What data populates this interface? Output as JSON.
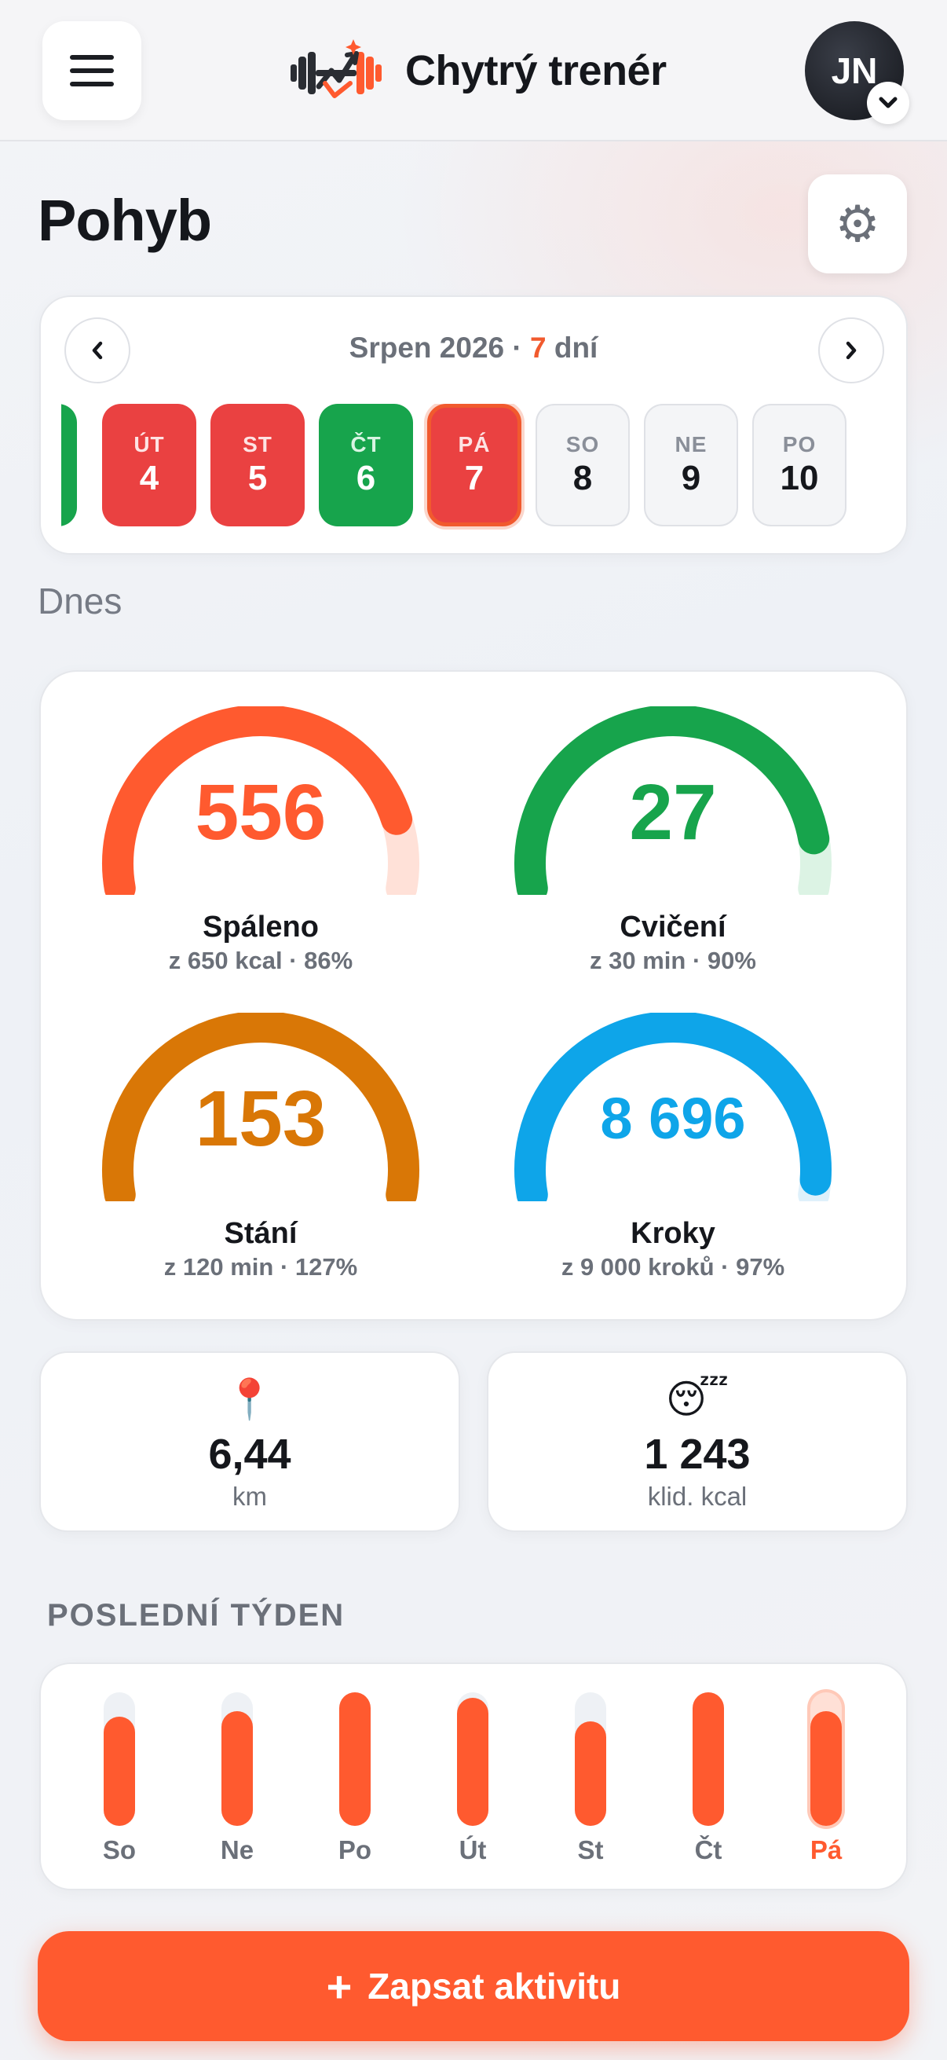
{
  "header": {
    "title": "Chytrý trenér",
    "avatar_initials": "JN"
  },
  "page": {
    "title": "Pohyb",
    "section_today": "Dnes"
  },
  "calendar": {
    "month_label": "Srpen 2026 · ",
    "range_count": "7",
    "range_unit": " dní",
    "days": [
      {
        "name": "ÚT",
        "num": "4",
        "status": "red"
      },
      {
        "name": "ST",
        "num": "5",
        "status": "red"
      },
      {
        "name": "ČT",
        "num": "6",
        "status": "green"
      },
      {
        "name": "PÁ",
        "num": "7",
        "status": "today"
      },
      {
        "name": "SO",
        "num": "8",
        "status": "future"
      },
      {
        "name": "NE",
        "num": "9",
        "status": "future"
      },
      {
        "name": "PO",
        "num": "10",
        "status": "future"
      }
    ]
  },
  "rings": [
    {
      "value": "556",
      "label": "Spáleno",
      "sub": "z 650 kcal · 86%",
      "progress": 0.86,
      "color": "#ff5a2f",
      "track": "#ffe1d8"
    },
    {
      "value": "27",
      "label": "Cvičení",
      "sub": "z 30 min · 90%",
      "progress": 0.9,
      "color": "#17a44c",
      "track": "#dcf3e4"
    },
    {
      "value": "153",
      "label": "Stání",
      "sub": "z 120 min · 127%",
      "progress": 1.0,
      "color": "#d97706",
      "track": "#fbe8cf"
    },
    {
      "value": "8 696",
      "label": "Kroky",
      "sub": "z 9 000 kroků · 97%",
      "progress": 0.97,
      "color": "#0ea5e9",
      "track": "#dff1fb"
    }
  ],
  "stats": [
    {
      "icon": "📍",
      "icon_name": "location-pin-icon",
      "value": "6,44",
      "unit": "km"
    },
    {
      "icon": "😴",
      "icon_name": "sleeping-face-icon",
      "value": "1 243",
      "unit": "klid. kcal"
    }
  ],
  "week": {
    "label": "POSLEDNÍ TÝDEN",
    "bars": [
      {
        "day": "So",
        "level": 0.82
      },
      {
        "day": "Ne",
        "level": 0.86
      },
      {
        "day": "Po",
        "level": 1.0
      },
      {
        "day": "Út",
        "level": 0.96
      },
      {
        "day": "St",
        "level": 0.78
      },
      {
        "day": "Čt",
        "level": 1.0
      },
      {
        "day": "Pá",
        "level": 0.86,
        "today": true
      }
    ]
  },
  "cta": {
    "plus": "+",
    "label": "Zapsat aktivitu"
  }
}
